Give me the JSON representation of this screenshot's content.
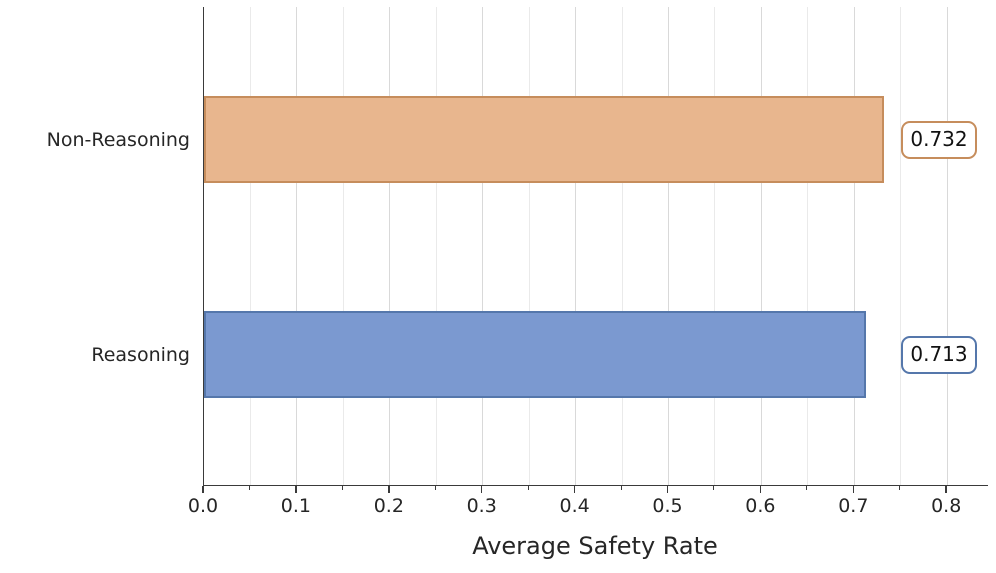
{
  "chart_data": {
    "type": "bar",
    "orientation": "horizontal",
    "title": "",
    "xlabel": "Average Safety Rate",
    "ylabel": "",
    "categories": [
      "Non-Reasoning",
      "Reasoning"
    ],
    "values": [
      0.732,
      0.713
    ],
    "value_labels": [
      "0.732",
      "0.713"
    ],
    "bar_colors": [
      "#e8b68e",
      "#7b99d0"
    ],
    "bar_edge_colors": [
      "#c68d5c",
      "#5577ab"
    ],
    "xlim": [
      0.0,
      0.844
    ],
    "x_major_ticks": [
      "0.0",
      "0.1",
      "0.2",
      "0.3",
      "0.4",
      "0.5",
      "0.6",
      "0.7",
      "0.8"
    ],
    "x_minor_tick_step": 0.05,
    "grid": "vertical-minor-and-major",
    "legend": "none",
    "background_color": "#ffffff",
    "spine_color": "#3a3a3a"
  }
}
